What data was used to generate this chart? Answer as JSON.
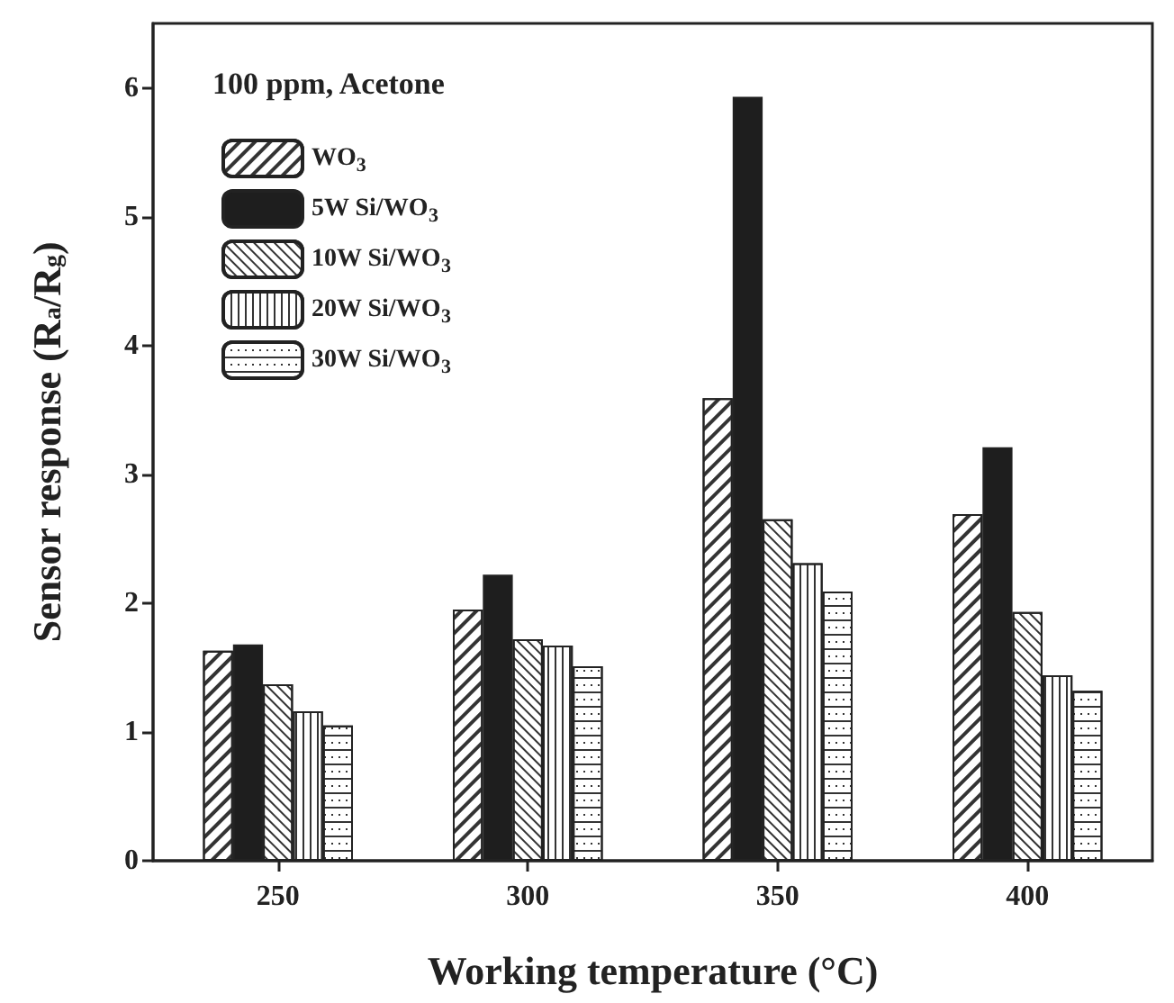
{
  "chart_data": {
    "type": "bar",
    "legend_title": "100 ppm, Acetone",
    "xlabel": "Working temperature (°C)",
    "ylabel": "Sensor response (R$_{a}$/R$_{g}$)",
    "categories": [
      "250",
      "300",
      "350",
      "400"
    ],
    "series": [
      {
        "name": "WO$_{3}$",
        "color": "#ffffff",
        "values": [
          1.63,
          1.95,
          3.59,
          2.69
        ]
      },
      {
        "name": "5W Si/WO$_{3}$",
        "color": "#1e1e1e",
        "values": [
          1.68,
          2.22,
          5.93,
          3.21
        ]
      },
      {
        "name": "10W Si/WO$_{3}$",
        "color": "#ffffff",
        "values": [
          1.37,
          1.72,
          2.65,
          1.93
        ]
      },
      {
        "name": "20W Si/WO$_{3}$",
        "color": "#ffffff",
        "values": [
          1.16,
          1.67,
          2.31,
          1.44
        ]
      },
      {
        "name": "30W Si/WO$_{3}$",
        "color": "#ffffff",
        "values": [
          1.05,
          1.51,
          2.09,
          1.32
        ]
      }
    ],
    "ylim": [
      0,
      6.5
    ],
    "yticks": [
      0,
      1,
      2,
      3,
      4,
      5,
      6
    ],
    "legend": "top left",
    "grid": false
  }
}
